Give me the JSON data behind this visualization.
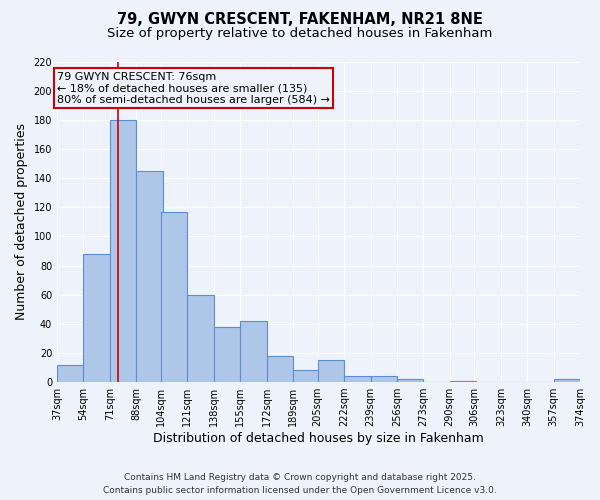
{
  "title": "79, GWYN CRESCENT, FAKENHAM, NR21 8NE",
  "subtitle": "Size of property relative to detached houses in Fakenham",
  "xlabel": "Distribution of detached houses by size in Fakenham",
  "ylabel": "Number of detached properties",
  "bar_left_edges": [
    37,
    54,
    71,
    88,
    104,
    121,
    138,
    155,
    172,
    189,
    205,
    222,
    239,
    256,
    273,
    290,
    306,
    323,
    340,
    357
  ],
  "bar_heights": [
    12,
    88,
    180,
    145,
    117,
    60,
    38,
    42,
    18,
    8,
    15,
    4,
    4,
    2,
    0,
    1,
    0,
    0,
    0,
    2
  ],
  "bin_width": 17,
  "bar_color": "#aec6e8",
  "bar_edge_color": "#5b8fd4",
  "tick_labels": [
    "37sqm",
    "54sqm",
    "71sqm",
    "88sqm",
    "104sqm",
    "121sqm",
    "138sqm",
    "155sqm",
    "172sqm",
    "189sqm",
    "205sqm",
    "222sqm",
    "239sqm",
    "256sqm",
    "273sqm",
    "290sqm",
    "306sqm",
    "323sqm",
    "340sqm",
    "357sqm",
    "374sqm"
  ],
  "ylim": [
    0,
    220
  ],
  "yticks": [
    0,
    20,
    40,
    60,
    80,
    100,
    120,
    140,
    160,
    180,
    200,
    220
  ],
  "vline_x": 76,
  "vline_color": "#cc0000",
  "annotation_line1": "79 GWYN CRESCENT: 76sqm",
  "annotation_line2": "← 18% of detached houses are smaller (135)",
  "annotation_line3": "80% of semi-detached houses are larger (584) →",
  "annotation_box_color": "#cc0000",
  "footer_line1": "Contains HM Land Registry data © Crown copyright and database right 2025.",
  "footer_line2": "Contains public sector information licensed under the Open Government Licence v3.0.",
  "background_color": "#eef2fb",
  "grid_color": "#ffffff",
  "title_fontsize": 10.5,
  "subtitle_fontsize": 9.5,
  "axis_label_fontsize": 9,
  "tick_fontsize": 7,
  "footer_fontsize": 6.5,
  "annotation_fontsize": 8
}
